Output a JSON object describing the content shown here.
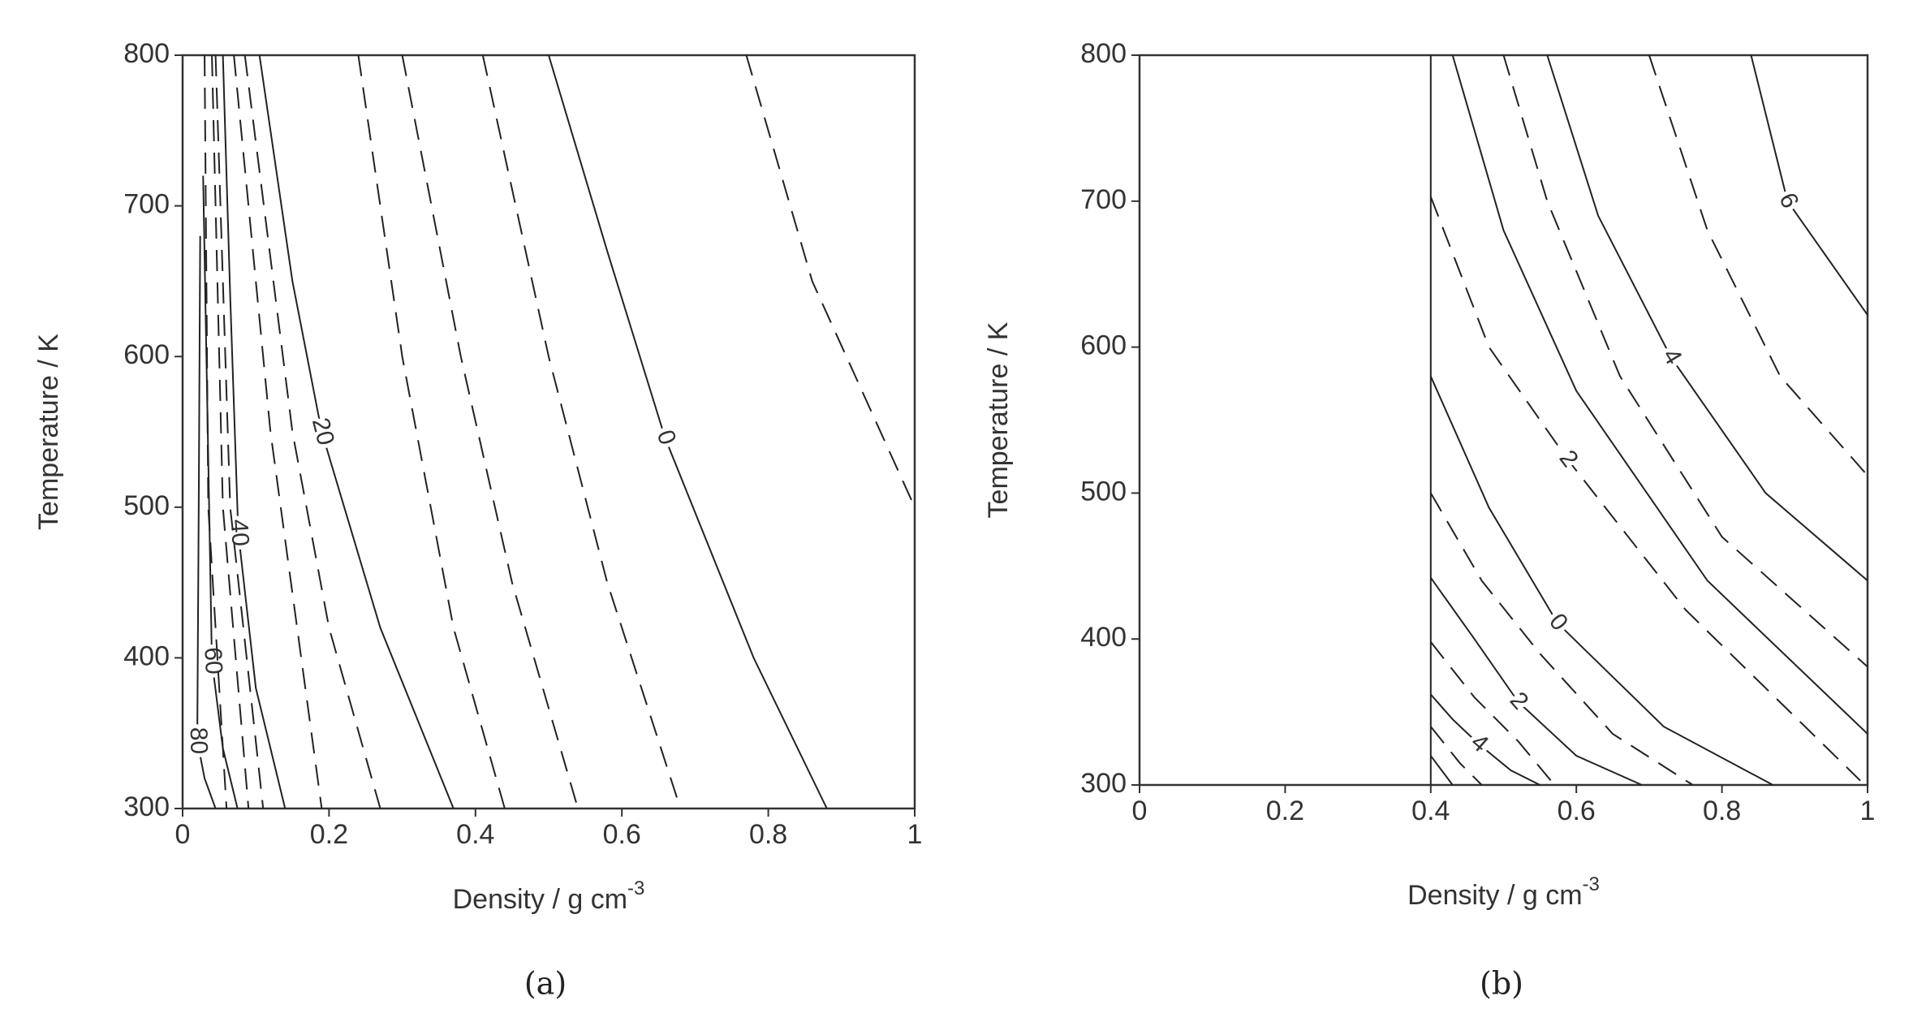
{
  "chart_data": [
    {
      "type": "contour",
      "caption": "(a)",
      "xlabel": "Density / g cm",
      "xlabel_sup": "-3",
      "ylabel": "Temperature / K",
      "xlim": [
        0,
        1
      ],
      "ylim": [
        300,
        800
      ],
      "xticks": [
        0,
        0.2,
        0.4,
        0.6,
        0.8,
        1
      ],
      "yticks": [
        300,
        400,
        500,
        600,
        700,
        800
      ],
      "contours": [
        {
          "style": "dashed",
          "x": [
            0.77,
            0.86,
            1.0
          ],
          "y": [
            800,
            650,
            500
          ]
        },
        {
          "style": "solid",
          "label": "0",
          "x": [
            0.5,
            0.58,
            0.659,
            0.78,
            0.88
          ],
          "y": [
            800,
            670,
            546,
            400,
            300
          ]
        },
        {
          "style": "dashed",
          "x": [
            0.41,
            0.5,
            0.58,
            0.68
          ],
          "y": [
            800,
            600,
            450,
            300
          ]
        },
        {
          "style": "dashed",
          "x": [
            0.3,
            0.38,
            0.45,
            0.54
          ],
          "y": [
            800,
            600,
            450,
            300
          ]
        },
        {
          "style": "dashed",
          "x": [
            0.24,
            0.3,
            0.37,
            0.44
          ],
          "y": [
            800,
            600,
            420,
            300
          ]
        },
        {
          "style": "solid",
          "label": "20",
          "x": [
            0.105,
            0.15,
            0.19,
            0.27,
            0.37
          ],
          "y": [
            800,
            650,
            550,
            420,
            300
          ]
        },
        {
          "style": "dashed",
          "x": [
            0.085,
            0.15,
            0.2,
            0.27
          ],
          "y": [
            800,
            550,
            420,
            300
          ]
        },
        {
          "style": "dashed",
          "x": [
            0.07,
            0.12,
            0.19
          ],
          "y": [
            800,
            550,
            300
          ]
        },
        {
          "style": "solid",
          "label": "40",
          "x": [
            0.055,
            0.065,
            0.076,
            0.1,
            0.14
          ],
          "y": [
            800,
            640,
            483,
            380,
            300
          ]
        },
        {
          "style": "dashed",
          "x": [
            0.045,
            0.065,
            0.11
          ],
          "y": [
            800,
            500,
            300
          ]
        },
        {
          "style": "dashed",
          "x": [
            0.04,
            0.055,
            0.09
          ],
          "y": [
            800,
            500,
            300
          ]
        },
        {
          "style": "solid",
          "label": "60",
          "x": [
            0.028,
            0.034,
            0.04,
            0.055,
            0.075
          ],
          "y": [
            720,
            560,
            398,
            340,
            300
          ]
        },
        {
          "style": "dashed",
          "x": [
            0.03,
            0.035,
            0.06
          ],
          "y": [
            800,
            500,
            300
          ]
        },
        {
          "style": "solid",
          "label": "80",
          "x": [
            0.024,
            0.022,
            0.02,
            0.03,
            0.045
          ],
          "y": [
            680,
            500,
            345,
            320,
            300
          ]
        }
      ]
    },
    {
      "type": "contour",
      "caption": "(b)",
      "xlabel": "Density / g cm",
      "xlabel_sup": "-3",
      "ylabel": "Temperature / K",
      "xlim": [
        0,
        1
      ],
      "ylim": [
        300,
        800
      ],
      "xticks": [
        0,
        0.2,
        0.4,
        0.6,
        0.8,
        1
      ],
      "yticks": [
        300,
        400,
        500,
        600,
        700,
        800
      ],
      "contours": [
        {
          "style": "solid",
          "x": [
            0.4,
            0.4
          ],
          "y": [
            300,
            800
          ]
        },
        {
          "style": "solid",
          "label": "6",
          "x": [
            0.84,
            0.89,
            1.0
          ],
          "y": [
            800,
            700,
            622
          ]
        },
        {
          "style": "dashed",
          "x": [
            0.7,
            0.78,
            0.88,
            1.0
          ],
          "y": [
            800,
            680,
            580,
            512
          ]
        },
        {
          "style": "solid",
          "label": "4",
          "x": [
            0.56,
            0.63,
            0.73,
            0.86,
            1.0
          ],
          "y": [
            800,
            690,
            593,
            500,
            440
          ]
        },
        {
          "style": "dashed",
          "x": [
            0.5,
            0.56,
            0.66,
            0.8,
            1.0
          ],
          "y": [
            800,
            700,
            580,
            470,
            381
          ]
        },
        {
          "style": "solid",
          "x": [
            0.43,
            0.5,
            0.6,
            0.78,
            1.0
          ],
          "y": [
            800,
            680,
            570,
            440,
            335
          ]
        },
        {
          "style": "dashed",
          "label": "2",
          "x": [
            0.4,
            0.48,
            0.588,
            0.75,
            0.99
          ],
          "y": [
            703,
            600,
            523,
            420,
            303
          ]
        },
        {
          "style": "solid",
          "label": "0",
          "x": [
            0.4,
            0.48,
            0.574,
            0.72,
            0.87
          ],
          "y": [
            580,
            490,
            411,
            340,
            300
          ]
        },
        {
          "style": "dashed",
          "x": [
            0.4,
            0.47,
            0.55,
            0.65,
            0.76
          ],
          "y": [
            500,
            440,
            390,
            335,
            300
          ]
        },
        {
          "style": "solid",
          "label": "2",
          "x": [
            0.4,
            0.46,
            0.52,
            0.6,
            0.69
          ],
          "y": [
            442,
            400,
            357,
            320,
            300
          ]
        },
        {
          "style": "dashed",
          "x": [
            0.4,
            0.46,
            0.52,
            0.57
          ],
          "y": [
            398,
            360,
            330,
            300
          ]
        },
        {
          "style": "solid",
          "label": "4",
          "x": [
            0.4,
            0.43,
            0.466,
            0.51,
            0.55
          ],
          "y": [
            362,
            345,
            328,
            310,
            300
          ]
        },
        {
          "style": "dashed",
          "x": [
            0.4,
            0.44,
            0.47
          ],
          "y": [
            340,
            315,
            300
          ]
        },
        {
          "style": "solid",
          "x": [
            0.4,
            0.43
          ],
          "y": [
            320,
            300
          ]
        }
      ]
    }
  ]
}
